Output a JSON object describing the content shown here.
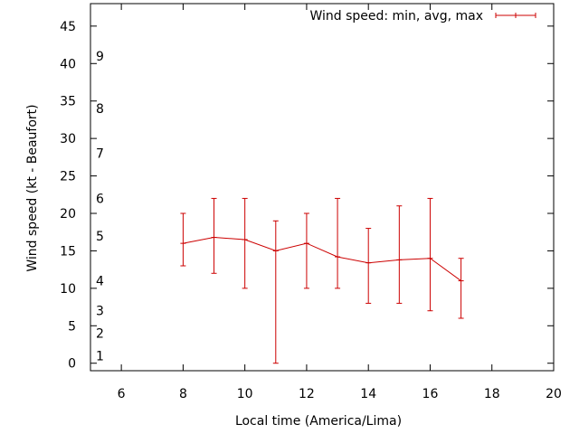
{
  "chart_data": {
    "type": "line",
    "title": "",
    "xlabel": "Local time (America/Lima)",
    "ylabel": "Wind speed (kt - Beaufort)",
    "xlim": [
      5,
      20
    ],
    "ylim": [
      -1,
      48
    ],
    "xticks": [
      6,
      8,
      10,
      12,
      14,
      16,
      18,
      20
    ],
    "yticks": [
      0,
      5,
      10,
      15,
      20,
      25,
      30,
      35,
      40,
      45
    ],
    "grid": false,
    "legend_position": "top-right",
    "beaufort_labels": [
      {
        "label": "1",
        "y": 1
      },
      {
        "label": "2",
        "y": 4
      },
      {
        "label": "3",
        "y": 7
      },
      {
        "label": "4",
        "y": 11
      },
      {
        "label": "5",
        "y": 17
      },
      {
        "label": "6",
        "y": 22
      },
      {
        "label": "7",
        "y": 28
      },
      {
        "label": "8",
        "y": 34
      },
      {
        "label": "9",
        "y": 41
      }
    ],
    "series": [
      {
        "name": "Wind speed: min, avg, max",
        "color": "#cc0000",
        "x": [
          8,
          9,
          10,
          11,
          12,
          13,
          14,
          15,
          16,
          17
        ],
        "avg": [
          16.0,
          16.8,
          16.5,
          15.0,
          16.0,
          14.2,
          13.4,
          13.8,
          14.0,
          11.0
        ],
        "min": [
          13,
          12,
          10,
          0,
          10,
          10,
          8,
          8,
          7,
          6
        ],
        "max": [
          20,
          22,
          22,
          19,
          20,
          22,
          18,
          21,
          22,
          14
        ]
      }
    ]
  }
}
